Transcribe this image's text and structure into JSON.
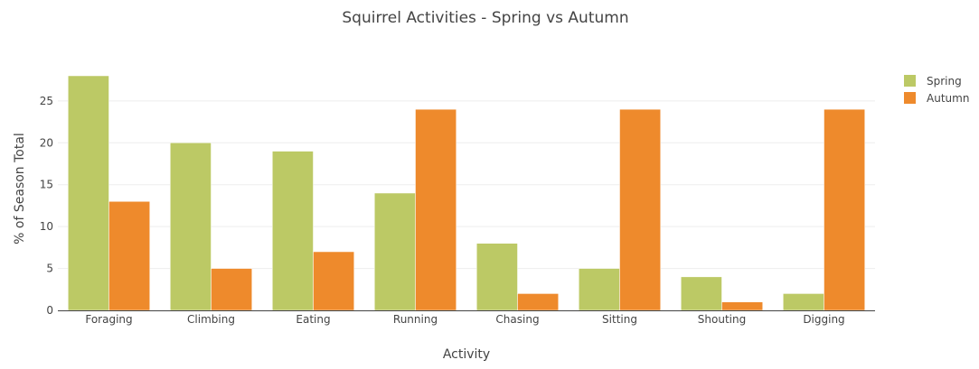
{
  "chart_data": {
    "type": "bar",
    "title": "Squirrel Activities - Spring vs Autumn",
    "xlabel": "Activity",
    "ylabel": "% of Season Total",
    "categories": [
      "Foraging",
      "Climbing",
      "Eating",
      "Running",
      "Chasing",
      "Sitting",
      "Shouting",
      "Digging"
    ],
    "series": [
      {
        "name": "Spring",
        "values": [
          28,
          20,
          19,
          14,
          8,
          5,
          4,
          2
        ],
        "color": "#bcc965"
      },
      {
        "name": "Autumn",
        "values": [
          13,
          5,
          7,
          24,
          2,
          24,
          1,
          24
        ],
        "color": "#ee8a2c"
      }
    ],
    "ylim": [
      0,
      28
    ],
    "yticks": [
      "0",
      "5",
      "10",
      "15",
      "20",
      "25"
    ],
    "grid": true,
    "legend_position": "top-right"
  }
}
